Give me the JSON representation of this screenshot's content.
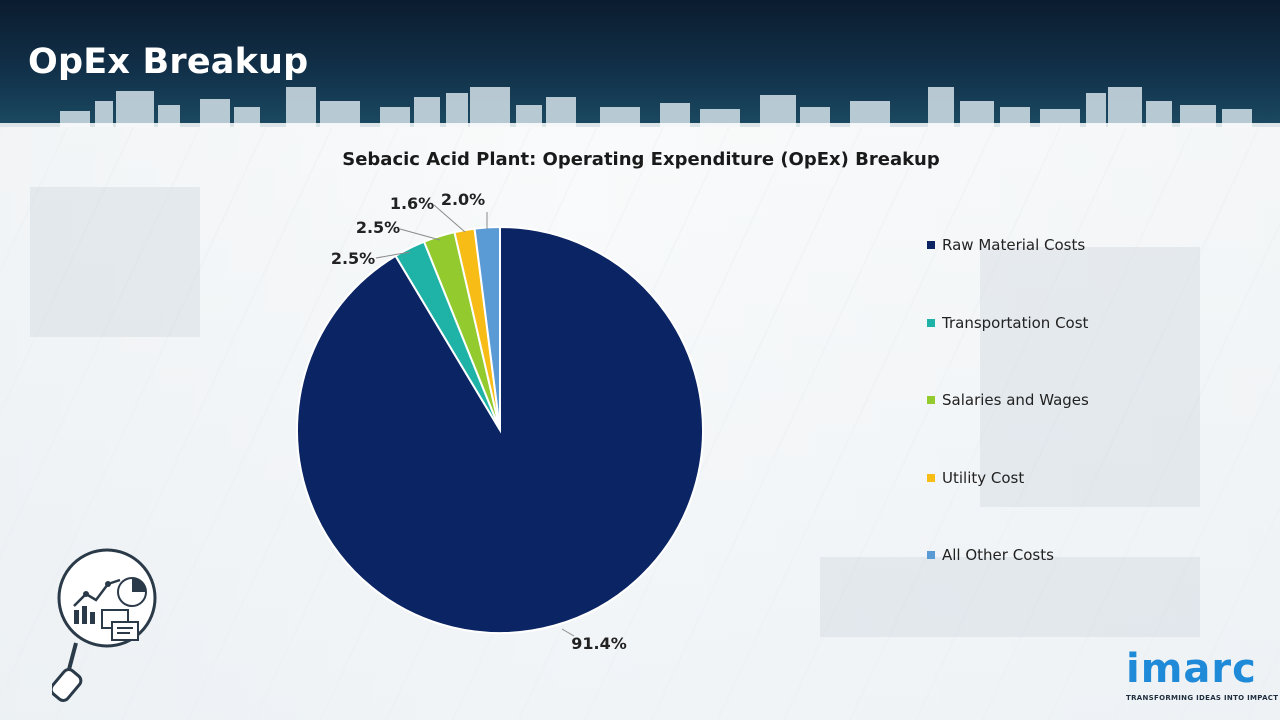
{
  "header": {
    "title": "OpEx Breakup"
  },
  "chart_data": {
    "type": "pie",
    "title": "Sebacic Acid Plant: Operating Expenditure (OpEx) Breakup",
    "categories": [
      "Raw Material Costs",
      "Transportation Cost",
      "Salaries and Wages",
      "Utility Cost",
      "All Other Costs"
    ],
    "values": [
      91.4,
      2.5,
      2.5,
      1.6,
      2.0
    ],
    "value_labels": [
      "91.4%",
      "2.5%",
      "2.5%",
      "1.6%",
      "2.0%"
    ],
    "colors": [
      "#0b2463",
      "#1fb3a7",
      "#93ca2e",
      "#f7bd16",
      "#5b9bd5"
    ],
    "legend_position": "right",
    "start_angle": "12 o'clock",
    "direction": "clockwise"
  },
  "branding": {
    "logo_word": "imarc",
    "logo_tagline": "TRANSFORMING IDEAS INTO IMPACT",
    "logo_color": "#1e8ad8"
  },
  "illustration": {
    "icon": "magnifier-analytics-icon"
  }
}
